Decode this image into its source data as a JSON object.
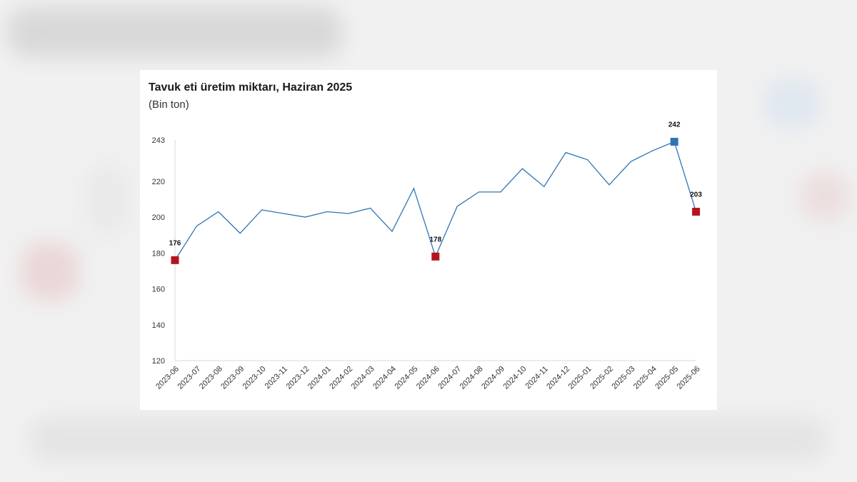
{
  "chart_data": {
    "type": "line",
    "title": "Tavuk eti üretim miktarı, Haziran 2025",
    "subtitle": "(Bin ton)",
    "xlabel": "",
    "ylabel": "",
    "ylim": [
      120,
      243
    ],
    "yticks": [
      120,
      140,
      160,
      180,
      200,
      220,
      243
    ],
    "grid": false,
    "categories": [
      "2023-06",
      "2023-07",
      "2023-08",
      "2023-09",
      "2023-10",
      "2023-11",
      "2023-12",
      "2024-01",
      "2024-02",
      "2024-03",
      "2024-04",
      "2024-05",
      "2024-06",
      "2024-07",
      "2024-08",
      "2024-09",
      "2024-10",
      "2024-11",
      "2024-12",
      "2025-01",
      "2025-02",
      "2025-03",
      "2025-04",
      "2025-05",
      "2025-06"
    ],
    "series": [
      {
        "values": [
          176,
          195,
          203,
          191,
          204,
          202,
          200,
          203,
          202,
          205,
          192,
          216,
          178,
          206,
          214,
          214,
          227,
          217,
          236,
          232,
          218,
          231,
          237,
          242,
          203
        ],
        "color": "#2e75b6"
      }
    ],
    "highlights": [
      {
        "index": 0,
        "label": "176",
        "color": "#b4151c"
      },
      {
        "index": 12,
        "label": "178",
        "color": "#b4151c"
      },
      {
        "index": 23,
        "label": "242",
        "color": "#2e75b6"
      },
      {
        "index": 24,
        "label": "203",
        "color": "#b4151c"
      }
    ]
  }
}
